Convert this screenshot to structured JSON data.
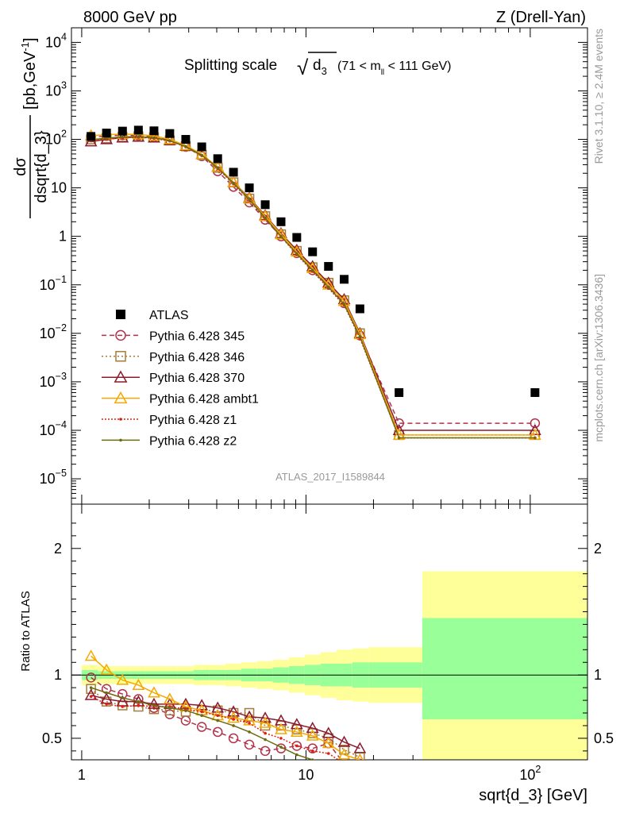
{
  "header": {
    "energy_label": "8000 GeV pp",
    "process_label": "Z (Drell-Yan)"
  },
  "plot": {
    "title_main": "Splitting scale",
    "title_sqrt": "√",
    "title_sub": "d",
    "title_sub_index": "3",
    "title_range_pre": "(71 < m",
    "title_range_sub": "ll",
    "title_range_post": " < 111 GeV)",
    "ylabel_num": "dσ",
    "ylabel_den": "dsqrt{d_3}",
    "ylabel_units": "[pb,GeV",
    "ylabel_units_sup": "-1",
    "ylabel_units_close": "]",
    "ratio_ylabel": "Ratio to ATLAS",
    "xlabel": "sqrt{d_3} [GeV]",
    "analysis_id": "ATLAS_2017_I1589844",
    "side_rivet": "Rivet 3.1.10, ≥ 2.4M events",
    "side_mcplots": "mcplots.cern.ch [arXiv:1306.3436]"
  },
  "chart_data": {
    "type": "scatter",
    "x_scale": "log",
    "y_scale": "log",
    "xlim": [
      0.9,
      180
    ],
    "ylim": [
      3e-06,
      20000
    ],
    "ratio_ylim": [
      0.33,
      2.35
    ],
    "x_ticks": [
      {
        "value": 1,
        "label": "1"
      },
      {
        "value": 10,
        "label": "10"
      },
      {
        "value": 100,
        "label": "10",
        "sup": "2"
      }
    ],
    "y_ticks": [
      {
        "value": 1e-05,
        "base": "10",
        "sup": "−5"
      },
      {
        "value": 0.0001,
        "base": "10",
        "sup": "−4"
      },
      {
        "value": 0.001,
        "base": "10",
        "sup": "−3"
      },
      {
        "value": 0.01,
        "base": "10",
        "sup": "−2"
      },
      {
        "value": 0.1,
        "base": "10",
        "sup": "−1"
      },
      {
        "value": 1,
        "base": "1",
        "sup": ""
      },
      {
        "value": 10,
        "base": "10",
        "sup": ""
      },
      {
        "value": 100,
        "base": "10",
        "sup": "2"
      },
      {
        "value": 1000,
        "base": "10",
        "sup": "3"
      },
      {
        "value": 10000,
        "base": "10",
        "sup": "4"
      }
    ],
    "ratio_ticks": [
      {
        "value": 0.5,
        "label": "0.5"
      },
      {
        "value": 1,
        "label": "1"
      },
      {
        "value": 2,
        "label": "2"
      }
    ],
    "legend_position": "middle-left",
    "data": {
      "name": "ATLAS",
      "color": "#000000",
      "x": [
        1.1,
        1.29,
        1.52,
        1.79,
        2.1,
        2.47,
        2.91,
        3.43,
        4.04,
        4.75,
        5.59,
        6.58,
        7.74,
        9.1,
        10.7,
        12.6,
        14.8,
        17.4,
        26.0,
        105.0
      ],
      "y": [
        115,
        135,
        148,
        155,
        150,
        132,
        100,
        70,
        40,
        21,
        10,
        4.5,
        2.0,
        0.95,
        0.48,
        0.24,
        0.13,
        0.032,
        0.0006,
        0.0006
      ]
    },
    "band": {
      "edges": [
        1.0,
        1.18,
        1.39,
        1.64,
        1.93,
        2.27,
        2.67,
        3.15,
        3.71,
        4.37,
        5.14,
        6.05,
        7.12,
        8.38,
        9.87,
        11.6,
        13.7,
        16.1,
        19.0,
        33.0,
        180.0
      ],
      "stat_lo": [
        0.96,
        0.97,
        0.97,
        0.97,
        0.97,
        0.97,
        0.97,
        0.96,
        0.96,
        0.96,
        0.95,
        0.95,
        0.94,
        0.93,
        0.92,
        0.91,
        0.91,
        0.9,
        0.9,
        0.65
      ],
      "stat_hi": [
        1.04,
        1.03,
        1.03,
        1.03,
        1.03,
        1.03,
        1.03,
        1.04,
        1.04,
        1.04,
        1.05,
        1.05,
        1.06,
        1.07,
        1.08,
        1.09,
        1.09,
        1.1,
        1.1,
        1.45
      ],
      "tot_lo": [
        0.92,
        0.93,
        0.93,
        0.93,
        0.93,
        0.93,
        0.93,
        0.92,
        0.92,
        0.91,
        0.9,
        0.89,
        0.88,
        0.86,
        0.84,
        0.82,
        0.8,
        0.79,
        0.78,
        0.33
      ],
      "tot_hi": [
        1.08,
        1.07,
        1.07,
        1.07,
        1.07,
        1.07,
        1.07,
        1.08,
        1.08,
        1.09,
        1.1,
        1.11,
        1.12,
        1.14,
        1.16,
        1.18,
        1.2,
        1.21,
        1.22,
        1.82
      ]
    },
    "series": [
      {
        "name": "Pythia 6.428 345",
        "color": "#b0324a",
        "marker": "circle",
        "dash": "6,4",
        "x": [
          1.1,
          1.29,
          1.52,
          1.79,
          2.1,
          2.47,
          2.91,
          3.43,
          4.04,
          4.75,
          5.59,
          6.58,
          7.74,
          9.1,
          10.7,
          12.6,
          14.8,
          17.4,
          26.0,
          105.0
        ],
        "y": [
          110,
          118,
          122,
          120,
          112,
          96,
          70,
          45,
          22,
          10.5,
          5.0,
          2.2,
          1.0,
          0.45,
          0.2,
          0.1,
          0.042,
          0.009,
          0.00014,
          0.00014
        ],
        "ratio": [
          0.98,
          0.89,
          0.85,
          0.81,
          0.74,
          0.69,
          0.64,
          0.59,
          0.55,
          0.5,
          0.45,
          0.4,
          0.42,
          0.44,
          0.42,
          0.46,
          0.3,
          0.3
        ]
      },
      {
        "name": "Pythia 6.428 346",
        "color": "#a67c3d",
        "marker": "square",
        "dash": "2,3",
        "x": [
          1.1,
          1.29,
          1.52,
          1.79,
          2.1,
          2.47,
          2.91,
          3.43,
          4.04,
          4.75,
          5.59,
          6.58,
          7.74,
          9.1,
          10.7,
          12.6,
          14.8,
          17.4,
          26.0,
          105.0
        ],
        "y": [
          100,
          105,
          112,
          115,
          110,
          95,
          72,
          48,
          26,
          13,
          6.0,
          2.6,
          1.1,
          0.5,
          0.23,
          0.11,
          0.048,
          0.01,
          8e-05,
          8e-05
        ],
        "ratio": [
          0.89,
          0.79,
          0.76,
          0.75,
          0.73,
          0.72,
          0.71,
          0.72,
          0.72,
          0.7,
          0.7,
          0.6,
          0.6,
          0.57,
          0.54,
          0.5,
          0.41,
          0.35
        ]
      },
      {
        "name": "Pythia 6.428 370",
        "color": "#8b1a2e",
        "marker": "triangle",
        "dash": "",
        "x": [
          1.1,
          1.29,
          1.52,
          1.79,
          2.1,
          2.47,
          2.91,
          3.43,
          4.04,
          4.75,
          5.59,
          6.58,
          7.74,
          9.1,
          10.7,
          12.6,
          14.8,
          17.4,
          26.0,
          105.0
        ],
        "y": [
          90,
          100,
          108,
          112,
          108,
          95,
          73,
          49,
          27,
          13,
          6.2,
          2.7,
          1.15,
          0.52,
          0.24,
          0.11,
          0.05,
          0.01,
          0.0001,
          0.0001
        ],
        "ratio": [
          0.84,
          0.81,
          0.79,
          0.79,
          0.77,
          0.77,
          0.77,
          0.76,
          0.74,
          0.71,
          0.67,
          0.66,
          0.64,
          0.61,
          0.58,
          0.54,
          0.47,
          0.42
        ]
      },
      {
        "name": "Pythia 6.428 ambt1",
        "color": "#f5a800",
        "marker": "triangle-open",
        "dash": "",
        "x": [
          1.1,
          1.29,
          1.52,
          1.79,
          2.1,
          2.47,
          2.91,
          3.43,
          4.04,
          4.75,
          5.59,
          6.58,
          7.74,
          9.1,
          10.7,
          12.6,
          14.8,
          17.4,
          26.0,
          105.0
        ],
        "y": [
          120,
          125,
          128,
          126,
          118,
          100,
          75,
          49,
          27,
          13,
          6.0,
          2.6,
          1.1,
          0.48,
          0.22,
          0.1,
          0.046,
          0.0095,
          8e-05,
          8e-05
        ],
        "ratio": [
          1.15,
          1.04,
          0.96,
          0.92,
          0.86,
          0.81,
          0.75,
          0.72,
          0.68,
          0.66,
          0.64,
          0.62,
          0.57,
          0.55,
          0.52,
          0.46,
          0.37,
          0.33
        ]
      },
      {
        "name": "Pythia 6.428 z1",
        "color": "#e02010",
        "marker": "dot",
        "dash": "2,2",
        "x": [
          1.1,
          1.29,
          1.52,
          1.79,
          2.1,
          2.47,
          2.91,
          3.43,
          4.04,
          4.75,
          5.59,
          6.58,
          7.74,
          9.1,
          10.7,
          12.6,
          14.8,
          17.4,
          26.0,
          105.0
        ],
        "y": [
          95,
          102,
          108,
          110,
          105,
          92,
          70,
          46,
          25,
          12,
          5.6,
          2.3,
          0.98,
          0.42,
          0.19,
          0.085,
          0.038,
          0.008,
          7e-05,
          7e-05
        ],
        "ratio": [
          0.83,
          0.77,
          0.75,
          0.76,
          0.75,
          0.75,
          0.73,
          0.71,
          0.68,
          0.65,
          0.62,
          0.54,
          0.5,
          0.44,
          0.4,
          0.38,
          0.3,
          0.3
        ]
      },
      {
        "name": "Pythia 6.428 z2",
        "color": "#6b6b10",
        "marker": "dot",
        "dash": "",
        "x": [
          1.1,
          1.29,
          1.52,
          1.79,
          2.1,
          2.47,
          2.91,
          3.43,
          4.04,
          4.75,
          5.59,
          6.58,
          7.74,
          9.1,
          10.7,
          12.6,
          14.8,
          17.4,
          26.0,
          105.0
        ],
        "y": [
          98,
          106,
          112,
          114,
          108,
          94,
          71,
          47,
          26,
          12.5,
          5.8,
          2.4,
          1.0,
          0.44,
          0.2,
          0.09,
          0.04,
          0.0085,
          7e-05,
          7e-05
        ],
        "ratio": [
          0.9,
          0.86,
          0.82,
          0.79,
          0.76,
          0.74,
          0.72,
          0.68,
          0.64,
          0.6,
          0.55,
          0.49,
          0.43,
          0.37,
          0.33,
          0.3,
          0.3,
          0.3
        ]
      }
    ]
  }
}
